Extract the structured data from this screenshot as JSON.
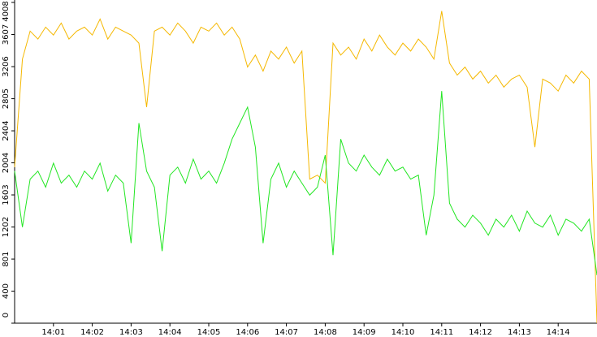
{
  "chart_data": {
    "type": "line",
    "x": [
      0,
      0.2,
      0.4,
      0.6,
      0.8,
      1,
      1.2,
      1.4,
      1.6,
      1.8,
      2,
      2.2,
      2.4,
      2.6,
      2.8,
      3,
      3.2,
      3.4,
      3.6,
      3.8,
      4,
      4.2,
      4.4,
      4.6,
      4.8,
      5,
      5.2,
      5.4,
      5.6,
      5.8,
      6,
      6.2,
      6.4,
      6.6,
      6.8,
      7,
      7.2,
      7.4,
      7.6,
      7.8,
      8,
      8.2,
      8.4,
      8.6,
      8.8,
      9,
      9.2,
      9.4,
      9.6,
      9.8,
      10,
      10.2,
      10.4,
      10.6,
      10.8,
      11,
      11.2,
      11.4,
      11.6,
      11.8,
      12,
      12.2,
      12.4,
      12.6,
      12.8,
      13,
      13.2,
      13.4,
      13.6,
      13.8,
      14,
      14.2,
      14.4,
      14.6,
      14.8,
      15
    ],
    "series": [
      {
        "color": "#f5b800",
        "values": [
          1950,
          3300,
          3650,
          3550,
          3700,
          3600,
          3750,
          3550,
          3650,
          3700,
          3600,
          3800,
          3550,
          3700,
          3650,
          3600,
          3500,
          2700,
          3650,
          3700,
          3600,
          3750,
          3650,
          3500,
          3700,
          3650,
          3750,
          3600,
          3700,
          3550,
          3200,
          3350,
          3150,
          3400,
          3300,
          3450,
          3250,
          3400,
          1800,
          1850,
          1750,
          3500,
          3350,
          3450,
          3300,
          3550,
          3400,
          3600,
          3450,
          3350,
          3500,
          3400,
          3550,
          3450,
          3300,
          3900,
          3250,
          3100,
          3200,
          3050,
          3150,
          3000,
          3100,
          2950,
          3050,
          3100,
          2950,
          2200,
          3050,
          3000,
          2900,
          3100,
          3000,
          3150,
          3050,
          0
        ]
      },
      {
        "color": "#22e622",
        "values": [
          1900,
          1200,
          1800,
          1900,
          1700,
          2000,
          1750,
          1850,
          1700,
          1900,
          1800,
          2000,
          1650,
          1850,
          1750,
          1000,
          2500,
          1900,
          1700,
          900,
          1850,
          1950,
          1750,
          2050,
          1800,
          1900,
          1750,
          2000,
          2300,
          2500,
          2700,
          2200,
          1000,
          1800,
          2000,
          1700,
          1900,
          1750,
          1600,
          1700,
          2100,
          850,
          2300,
          2000,
          1900,
          2100,
          1950,
          1850,
          2050,
          1900,
          1950,
          1800,
          1850,
          1100,
          1600,
          2900,
          1500,
          1300,
          1200,
          1350,
          1250,
          1100,
          1300,
          1200,
          1350,
          1150,
          1400,
          1250,
          1200,
          1350,
          1100,
          1300,
          1250,
          1150,
          1300,
          600
        ]
      }
    ],
    "xlim": [
      0,
      15
    ],
    "xticks": [
      {
        "value": 1,
        "label": "14:01"
      },
      {
        "value": 2,
        "label": "14:02"
      },
      {
        "value": 3,
        "label": "14:03"
      },
      {
        "value": 4,
        "label": "14:04"
      },
      {
        "value": 5,
        "label": "14:05"
      },
      {
        "value": 6,
        "label": "14:06"
      },
      {
        "value": 7,
        "label": "14:07"
      },
      {
        "value": 8,
        "label": "14:08"
      },
      {
        "value": 9,
        "label": "14:09"
      },
      {
        "value": 10,
        "label": "14:10"
      },
      {
        "value": 11,
        "label": "14:11"
      },
      {
        "value": 12,
        "label": "14:12"
      },
      {
        "value": 13,
        "label": "14:13"
      },
      {
        "value": 14,
        "label": "14:14"
      }
    ],
    "ylim": [
      0,
      4008
    ],
    "yticks": [
      0,
      400,
      801,
      1202,
      1603,
      2004,
      2404,
      2805,
      3206,
      3607,
      4008
    ]
  }
}
